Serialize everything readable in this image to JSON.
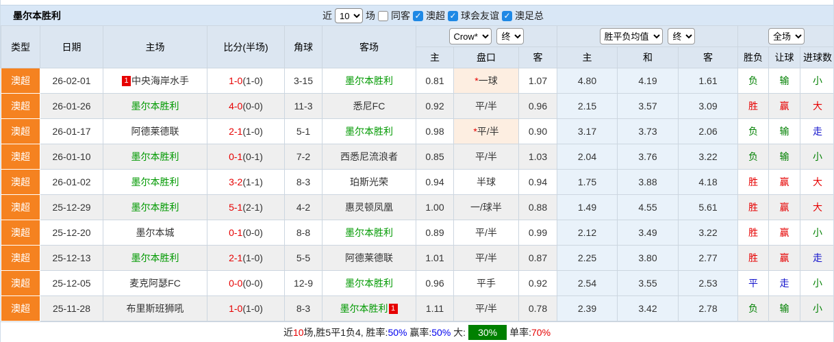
{
  "title": "墨尔本胜利",
  "controls": {
    "recent_label": "近",
    "recent_value": "10",
    "matches_label": "场",
    "same_venue": {
      "label": "同客",
      "checked": false
    },
    "filters": [
      {
        "label": "澳超",
        "checked": true
      },
      {
        "label": "球会友谊",
        "checked": true
      },
      {
        "label": "澳足总",
        "checked": true
      }
    ]
  },
  "header": {
    "col_type": "类型",
    "col_date": "日期",
    "col_home": "主场",
    "col_score": "比分(半场)",
    "col_corner": "角球",
    "col_away": "客场",
    "odds_provider_select": "Crow*",
    "odds_time_select": "终",
    "odds_sub_home": "主",
    "odds_sub_handicap": "盘口",
    "odds_sub_away": "客",
    "avg_select": "胜平负均值",
    "avg_time_select": "终",
    "avg_sub_home": "主",
    "avg_sub_draw": "和",
    "avg_sub_away": "客",
    "scope_select": "全场",
    "res_sub_wdl": "胜负",
    "res_sub_handicap": "让球",
    "res_sub_goals": "进球数"
  },
  "result_colors": {
    "胜": "red",
    "赢": "red",
    "大": "red",
    "负": "green",
    "输": "green",
    "小": "green",
    "平": "blue",
    "走": "blue"
  },
  "rows": [
    {
      "league": "澳超",
      "date": "26-02-01",
      "home": {
        "name": "中央海岸水手",
        "green": false,
        "badge": "1",
        "badge_pos": "before"
      },
      "score": {
        "full": "1-0",
        "half": "(1-0)"
      },
      "corner": "3-15",
      "away": {
        "name": "墨尔本胜利",
        "green": true
      },
      "odds": {
        "home": "0.81",
        "handicap": "一球",
        "star": true,
        "away": "1.07"
      },
      "avg": {
        "home": "4.80",
        "draw": "4.19",
        "away": "1.61"
      },
      "results": [
        "负",
        "输",
        "小"
      ]
    },
    {
      "league": "澳超",
      "date": "26-01-26",
      "home": {
        "name": "墨尔本胜利",
        "green": true
      },
      "score": {
        "full": "4-0",
        "half": "(0-0)"
      },
      "corner": "11-3",
      "away": {
        "name": "悉尼FC",
        "green": false
      },
      "odds": {
        "home": "0.92",
        "handicap": "平/半",
        "star": false,
        "away": "0.96"
      },
      "avg": {
        "home": "2.15",
        "draw": "3.57",
        "away": "3.09"
      },
      "results": [
        "胜",
        "赢",
        "大"
      ]
    },
    {
      "league": "澳超",
      "date": "26-01-17",
      "home": {
        "name": "阿德莱德联",
        "green": false
      },
      "score": {
        "full": "2-1",
        "half": "(1-0)"
      },
      "corner": "5-1",
      "away": {
        "name": "墨尔本胜利",
        "green": true
      },
      "odds": {
        "home": "0.98",
        "handicap": "平/半",
        "star": true,
        "away": "0.90"
      },
      "avg": {
        "home": "3.17",
        "draw": "3.73",
        "away": "2.06"
      },
      "results": [
        "负",
        "输",
        "走"
      ]
    },
    {
      "league": "澳超",
      "date": "26-01-10",
      "home": {
        "name": "墨尔本胜利",
        "green": true
      },
      "score": {
        "full": "0-1",
        "half": "(0-1)"
      },
      "corner": "7-2",
      "away": {
        "name": "西悉尼流浪者",
        "green": false
      },
      "odds": {
        "home": "0.85",
        "handicap": "平/半",
        "star": false,
        "away": "1.03"
      },
      "avg": {
        "home": "2.04",
        "draw": "3.76",
        "away": "3.22"
      },
      "results": [
        "负",
        "输",
        "小"
      ]
    },
    {
      "league": "澳超",
      "date": "26-01-02",
      "home": {
        "name": "墨尔本胜利",
        "green": true
      },
      "score": {
        "full": "3-2",
        "half": "(1-1)"
      },
      "corner": "8-3",
      "away": {
        "name": "珀斯光荣",
        "green": false
      },
      "odds": {
        "home": "0.94",
        "handicap": "半球",
        "star": false,
        "away": "0.94"
      },
      "avg": {
        "home": "1.75",
        "draw": "3.88",
        "away": "4.18"
      },
      "results": [
        "胜",
        "赢",
        "大"
      ]
    },
    {
      "league": "澳超",
      "date": "25-12-29",
      "home": {
        "name": "墨尔本胜利",
        "green": true
      },
      "score": {
        "full": "5-1",
        "half": "(2-1)"
      },
      "corner": "4-2",
      "away": {
        "name": "惠灵顿凤凰",
        "green": false
      },
      "odds": {
        "home": "1.00",
        "handicap": "一/球半",
        "star": false,
        "away": "0.88"
      },
      "avg": {
        "home": "1.49",
        "draw": "4.55",
        "away": "5.61"
      },
      "results": [
        "胜",
        "赢",
        "大"
      ]
    },
    {
      "league": "澳超",
      "date": "25-12-20",
      "home": {
        "name": "墨尔本城",
        "green": false
      },
      "score": {
        "full": "0-1",
        "half": "(0-0)"
      },
      "corner": "8-8",
      "away": {
        "name": "墨尔本胜利",
        "green": true
      },
      "odds": {
        "home": "0.89",
        "handicap": "平/半",
        "star": false,
        "away": "0.99"
      },
      "avg": {
        "home": "2.12",
        "draw": "3.49",
        "away": "3.22"
      },
      "results": [
        "胜",
        "赢",
        "小"
      ]
    },
    {
      "league": "澳超",
      "date": "25-12-13",
      "home": {
        "name": "墨尔本胜利",
        "green": true
      },
      "score": {
        "full": "2-1",
        "half": "(1-0)"
      },
      "corner": "5-5",
      "away": {
        "name": "阿德莱德联",
        "green": false
      },
      "odds": {
        "home": "1.01",
        "handicap": "平/半",
        "star": false,
        "away": "0.87"
      },
      "avg": {
        "home": "2.25",
        "draw": "3.80",
        "away": "2.77"
      },
      "results": [
        "胜",
        "赢",
        "走"
      ]
    },
    {
      "league": "澳超",
      "date": "25-12-05",
      "home": {
        "name": "麦克阿瑟FC",
        "green": false
      },
      "score": {
        "full": "0-0",
        "half": "(0-0)"
      },
      "corner": "12-9",
      "away": {
        "name": "墨尔本胜利",
        "green": true
      },
      "odds": {
        "home": "0.96",
        "handicap": "平手",
        "star": false,
        "away": "0.92"
      },
      "avg": {
        "home": "2.54",
        "draw": "3.55",
        "away": "2.53"
      },
      "results": [
        "平",
        "走",
        "小"
      ]
    },
    {
      "league": "澳超",
      "date": "25-11-28",
      "home": {
        "name": "布里斯班狮吼",
        "green": false
      },
      "score": {
        "full": "1-0",
        "half": "(1-0)"
      },
      "corner": "8-3",
      "away": {
        "name": "墨尔本胜利",
        "green": true,
        "badge": "1",
        "badge_pos": "after"
      },
      "odds": {
        "home": "1.11",
        "handicap": "平/半",
        "star": false,
        "away": "0.78"
      },
      "avg": {
        "home": "2.39",
        "draw": "3.42",
        "away": "2.78"
      },
      "results": [
        "负",
        "输",
        "小"
      ]
    }
  ],
  "summary": [
    {
      "text": "近",
      "style": "plain"
    },
    {
      "text": "10",
      "style": "red"
    },
    {
      "text": "场,胜5平1负4, 胜率:",
      "style": "plain"
    },
    {
      "text": "50%",
      "style": "blue"
    },
    {
      "text": " 赢率:",
      "style": "plain"
    },
    {
      "text": "50%",
      "style": "blue"
    },
    {
      "text": " 大:",
      "style": "plain"
    },
    {
      "text": "30%",
      "style": "greenbox"
    },
    {
      "text": "单率:",
      "style": "plain"
    },
    {
      "text": "70%",
      "style": "red"
    }
  ]
}
